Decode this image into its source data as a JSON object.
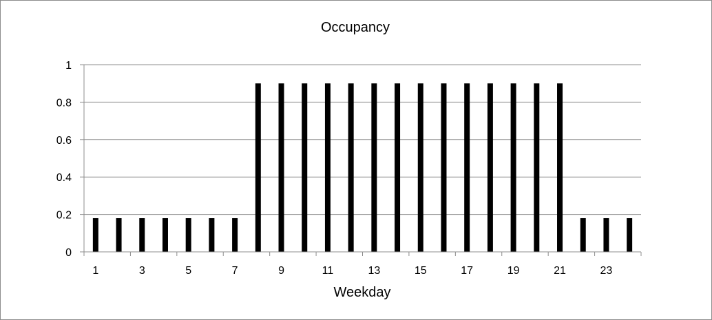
{
  "chart_data": {
    "type": "bar",
    "title": "Occupancy",
    "xlabel": "Weekday",
    "ylabel": "",
    "categories": [
      1,
      2,
      3,
      4,
      5,
      6,
      7,
      8,
      9,
      10,
      11,
      12,
      13,
      14,
      15,
      16,
      17,
      18,
      19,
      20,
      21,
      22,
      23,
      24
    ],
    "x_tick_labels": [
      "1",
      "3",
      "5",
      "7",
      "9",
      "11",
      "13",
      "15",
      "17",
      "19",
      "21",
      "23"
    ],
    "x_tick_values": [
      1,
      3,
      5,
      7,
      9,
      11,
      13,
      15,
      17,
      19,
      21,
      23
    ],
    "values": [
      0.18,
      0.18,
      0.18,
      0.18,
      0.18,
      0.18,
      0.18,
      0.9,
      0.9,
      0.9,
      0.9,
      0.9,
      0.9,
      0.9,
      0.9,
      0.9,
      0.9,
      0.9,
      0.9,
      0.9,
      0.9,
      0.18,
      0.18,
      0.18
    ],
    "ylim": [
      0,
      1
    ],
    "y_ticks": [
      0,
      0.2,
      0.4,
      0.6,
      0.8,
      1
    ],
    "y_tick_labels": [
      "0",
      "0.2",
      "0.4",
      "0.6",
      "0.8",
      "1"
    ],
    "grid": true,
    "legend": "none",
    "bar_color": "#000000",
    "grid_color": "#8c8c8c"
  }
}
